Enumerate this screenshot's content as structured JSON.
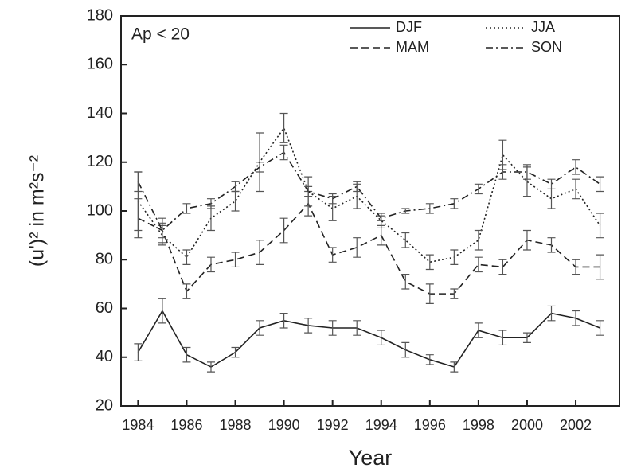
{
  "chart_data": {
    "type": "line",
    "annotation": "Ap < 20",
    "xlabel": "Year",
    "ylabel": "(u')² in m²s⁻²",
    "x": [
      1984,
      1985,
      1986,
      1987,
      1988,
      1989,
      1990,
      1991,
      1992,
      1993,
      1994,
      1995,
      1996,
      1997,
      1998,
      1999,
      2000,
      2001,
      2002,
      2003
    ],
    "series": [
      {
        "name": "DJF",
        "color": "#222222",
        "dash": "solid",
        "values": [
          42,
          59,
          41,
          36,
          42,
          52,
          55,
          53,
          52,
          52,
          48,
          43,
          39,
          36,
          51,
          48,
          48,
          58,
          56,
          52
        ],
        "errors": [
          3.5,
          5,
          3,
          2,
          2,
          3,
          3,
          3,
          3,
          3,
          3,
          3,
          2,
          2,
          3,
          3,
          2,
          3,
          3,
          3
        ]
      },
      {
        "name": "MAM",
        "color": "#222222",
        "dash": "dashed",
        "values": [
          97,
          92,
          67,
          78,
          80,
          83,
          92,
          103,
          82,
          85,
          90,
          71,
          66,
          66,
          78,
          77,
          88,
          86,
          77,
          77
        ],
        "errors": [
          8,
          5,
          3,
          3,
          3,
          5,
          5,
          5,
          3,
          4,
          4,
          3,
          4,
          2,
          3,
          3,
          4,
          3,
          3,
          5
        ]
      },
      {
        "name": "JJA",
        "color": "#222222",
        "dash": "dotted",
        "values": [
          104,
          90,
          81,
          97,
          104,
          120,
          134,
          108,
          101,
          106,
          96,
          88,
          79,
          81,
          88,
          123,
          112,
          105,
          109,
          94
        ],
        "errors": [
          12,
          4,
          3,
          5,
          4,
          12,
          6,
          6,
          5,
          5,
          3,
          3,
          3,
          3,
          4,
          6,
          6,
          4,
          4,
          5
        ]
      },
      {
        "name": "SON",
        "color": "#222222",
        "dash": "dashdot",
        "values": [
          112,
          92,
          101,
          103,
          110,
          118,
          124,
          108,
          105,
          110,
          97,
          100,
          101,
          103,
          109,
          116,
          116,
          111,
          118,
          111
        ],
        "errors": [
          4,
          3,
          2,
          2,
          2,
          2,
          3,
          2,
          2,
          2,
          1,
          1,
          2,
          2,
          2,
          3,
          3,
          2,
          3,
          3
        ]
      }
    ],
    "xlim": [
      1983.3,
      2003.8
    ],
    "xticks": [
      1984,
      1986,
      1988,
      1990,
      1992,
      1994,
      1996,
      1998,
      2000,
      2002
    ],
    "ylim": [
      20,
      180
    ],
    "yticks": [
      20,
      40,
      60,
      80,
      100,
      120,
      140,
      160,
      180
    ],
    "legend": "upper right"
  }
}
